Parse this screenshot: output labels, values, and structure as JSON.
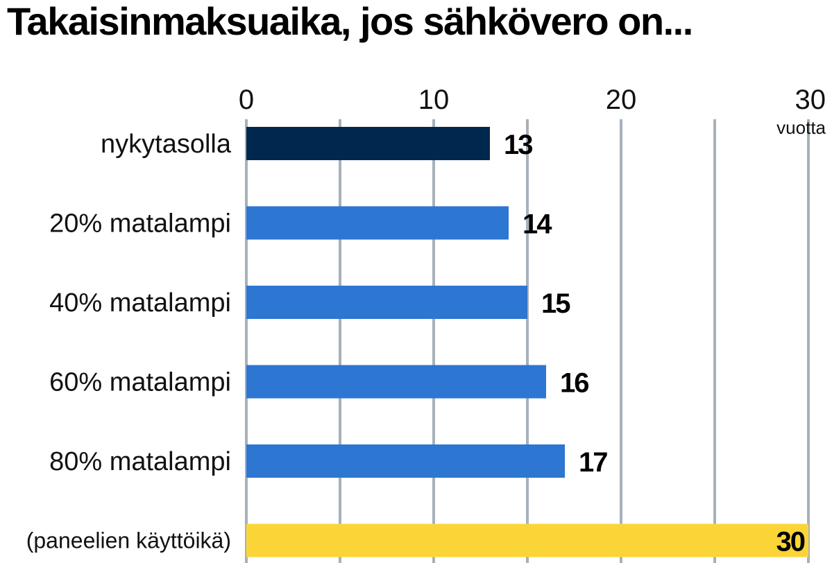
{
  "chart_data": {
    "type": "bar",
    "orientation": "horizontal",
    "title": "Takaisinmaksuaika, jos sähkövero on...",
    "x_unit_label": "vuotta",
    "xlim": [
      0,
      30
    ],
    "x_ticks": [
      0,
      10,
      20,
      30
    ],
    "gridlines": [
      0,
      5,
      10,
      15,
      20,
      25,
      30
    ],
    "grid": true,
    "categories": [
      "nykytasolla",
      "20% matalampi",
      "40% matalampi",
      "60% matalampi",
      "80% matalampi",
      "(paneelien käyttöikä)"
    ],
    "values": [
      13,
      14,
      15,
      16,
      17,
      30
    ],
    "value_labels": [
      "13",
      "14",
      "15",
      "16",
      "17",
      "30"
    ],
    "colors": [
      "#00274d",
      "#2d76d2",
      "#2d76d2",
      "#2d76d2",
      "#2d76d2",
      "#fbd538"
    ],
    "gridline_color": "#a7b1ba",
    "label_color": "#111111"
  }
}
